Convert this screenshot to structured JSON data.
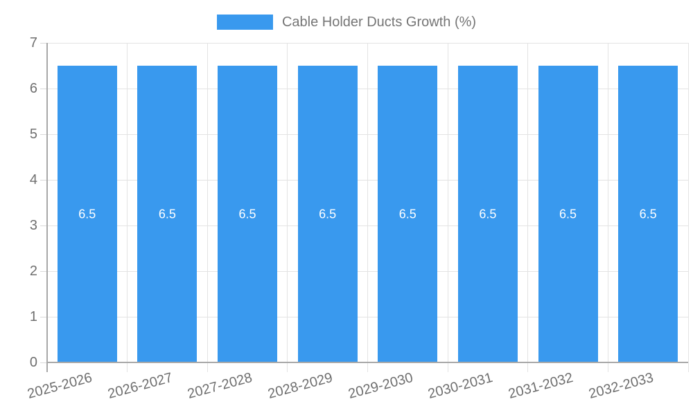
{
  "legend": {
    "label": "Cable Holder Ducts Growth (%)"
  },
  "chart_data": {
    "type": "bar",
    "title": "Cable Holder Ducts Growth (%)",
    "categories": [
      "2025-2026",
      "2026-2027",
      "2027-2028",
      "2028-2029",
      "2029-2030",
      "2030-2031",
      "2031-2032",
      "2032-2033"
    ],
    "series": [
      {
        "name": "Cable Holder Ducts Growth (%)",
        "values": [
          6.5,
          6.5,
          6.5,
          6.5,
          6.5,
          6.5,
          6.5,
          6.5
        ]
      }
    ],
    "value_labels": [
      "6.5",
      "6.5",
      "6.5",
      "6.5",
      "6.5",
      "6.5",
      "6.5",
      "6.5"
    ],
    "xlabel": "",
    "ylabel": "",
    "ylim": [
      0,
      7
    ],
    "yticks": [
      0,
      1,
      2,
      3,
      4,
      5,
      6,
      7
    ],
    "grid": true,
    "legend_position": "top",
    "colors": {
      "bar": "#3999EE",
      "value_label": "#FFFFFF",
      "grid": "#E3E3E3",
      "axis": "#A8A8A8",
      "tick_label": "#6E6E6E",
      "legend_text": "#757575"
    }
  }
}
